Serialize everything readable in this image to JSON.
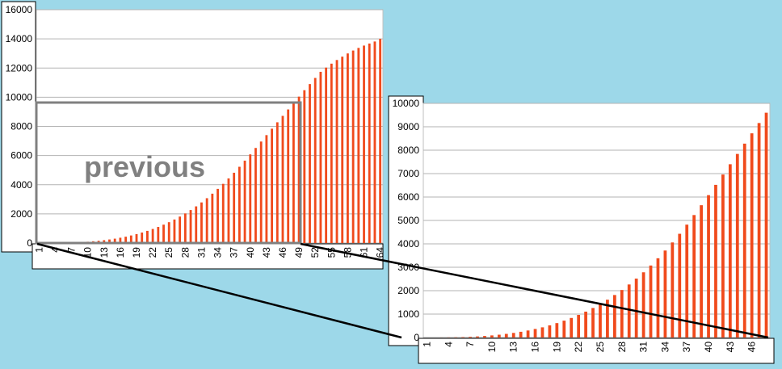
{
  "annotation": {
    "label": "previous"
  },
  "chart_data": [
    {
      "type": "bar",
      "categories": [
        "1",
        "2",
        "3",
        "4",
        "5",
        "6",
        "7",
        "8",
        "9",
        "10",
        "11",
        "12",
        "13",
        "14",
        "15",
        "16",
        "17",
        "18",
        "19",
        "20",
        "21",
        "22",
        "23",
        "24",
        "25",
        "26",
        "27",
        "28",
        "29",
        "30",
        "31",
        "32",
        "33",
        "34",
        "35",
        "36",
        "37",
        "38",
        "39",
        "40",
        "41",
        "42",
        "43",
        "44",
        "45",
        "46",
        "47",
        "48",
        "49",
        "50",
        "51",
        "52",
        "53",
        "54",
        "55",
        "56",
        "57",
        "58",
        "59",
        "60",
        "61",
        "62",
        "63",
        "64"
      ],
      "x_tick_labels": [
        "1",
        "4",
        "7",
        "10",
        "13",
        "16",
        "19",
        "22",
        "25",
        "28",
        "31",
        "34",
        "37",
        "40",
        "43",
        "46",
        "49",
        "52",
        "55",
        "58",
        "61",
        "64"
      ],
      "values": [
        0,
        0,
        2,
        6,
        11,
        19,
        30,
        46,
        66,
        90,
        120,
        155,
        196,
        245,
        300,
        365,
        435,
        520,
        615,
        720,
        835,
        965,
        1105,
        1260,
        1430,
        1615,
        1815,
        2030,
        2265,
        2515,
        2785,
        3075,
        3385,
        3715,
        4060,
        4430,
        4820,
        5230,
        5650,
        6080,
        6520,
        6960,
        7400,
        7840,
        8280,
        8720,
        9160,
        9600,
        10040,
        10480,
        10900,
        11320,
        11740,
        12030,
        12300,
        12550,
        12780,
        13000,
        13200,
        13380,
        13540,
        13680,
        13820,
        14000
      ],
      "ylim": [
        0,
        16000
      ],
      "y_ticks": [
        0,
        2000,
        4000,
        6000,
        8000,
        10000,
        12000,
        14000,
        16000
      ],
      "title": "",
      "xlabel": "",
      "ylabel": "",
      "grid": true,
      "bar_color": "#f04a1c"
    },
    {
      "type": "bar",
      "categories": [
        "1",
        "2",
        "3",
        "4",
        "5",
        "6",
        "7",
        "8",
        "9",
        "10",
        "11",
        "12",
        "13",
        "14",
        "15",
        "16",
        "17",
        "18",
        "19",
        "20",
        "21",
        "22",
        "23",
        "24",
        "25",
        "26",
        "27",
        "28",
        "29",
        "30",
        "31",
        "32",
        "33",
        "34",
        "35",
        "36",
        "37",
        "38",
        "39",
        "40",
        "41",
        "42",
        "43",
        "44",
        "45",
        "46",
        "47",
        "48"
      ],
      "x_tick_labels": [
        "1",
        "4",
        "7",
        "10",
        "13",
        "16",
        "19",
        "22",
        "25",
        "28",
        "31",
        "34",
        "37",
        "40",
        "43",
        "46"
      ],
      "values": [
        0,
        0,
        2,
        6,
        11,
        19,
        30,
        46,
        66,
        90,
        120,
        155,
        196,
        245,
        300,
        365,
        435,
        520,
        615,
        720,
        835,
        965,
        1105,
        1260,
        1430,
        1615,
        1815,
        2030,
        2265,
        2515,
        2785,
        3075,
        3385,
        3715,
        4060,
        4430,
        4820,
        5230,
        5650,
        6080,
        6520,
        6960,
        7400,
        7840,
        8280,
        8720,
        9160,
        9600
      ],
      "ylim": [
        0,
        10000
      ],
      "y_ticks": [
        0,
        1000,
        2000,
        3000,
        4000,
        5000,
        6000,
        7000,
        8000,
        9000,
        10000
      ],
      "title": "",
      "xlabel": "",
      "ylabel": "",
      "grid": true,
      "bar_color": "#f04a1c"
    }
  ],
  "colors": {
    "background": "#9dd8e9",
    "plot_bg": "#ffffff",
    "grid": "#b3b3b3",
    "bars": "#f04a1c",
    "highlight_box": "#808080",
    "connector": "#000000"
  }
}
